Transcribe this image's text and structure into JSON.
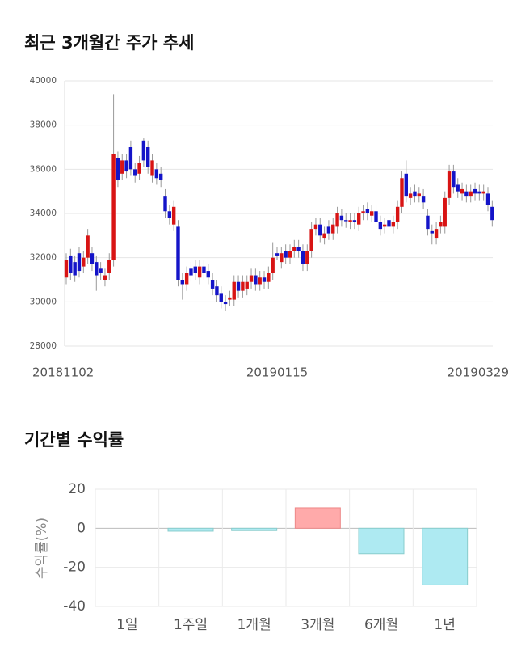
{
  "chart_data": [
    {
      "type": "candlestick",
      "title": "최근 3개월간 주가 추세",
      "categories": [
        "20181102",
        null,
        null,
        null,
        null,
        null,
        null,
        null,
        null,
        null,
        null,
        null,
        null,
        null,
        null,
        null,
        null,
        null,
        null,
        null,
        null,
        null,
        null,
        null,
        null,
        null,
        null,
        null,
        null,
        null,
        null,
        null,
        null,
        null,
        null,
        null,
        null,
        null,
        null,
        null,
        null,
        null,
        null,
        null,
        null,
        null,
        null,
        null,
        null,
        "20190115",
        null,
        null,
        null,
        null,
        null,
        null,
        null,
        null,
        null,
        null,
        null,
        null,
        null,
        null,
        null,
        null,
        null,
        null,
        null,
        null,
        null,
        null,
        null,
        null,
        null,
        null,
        null,
        null,
        null,
        null,
        null,
        null,
        null,
        null,
        null,
        null,
        null,
        null,
        null,
        null,
        null,
        null,
        null,
        null,
        null,
        null,
        null,
        null,
        null,
        "20190329"
      ],
      "open": [
        31100,
        32100,
        31800,
        32200,
        31600,
        32000,
        32200,
        31800,
        31500,
        31000,
        31300,
        31900,
        36500,
        35800,
        36400,
        37000,
        36000,
        35800,
        37300,
        37000,
        35700,
        36000,
        35800,
        34800,
        34100,
        33500,
        33400,
        31000,
        30800,
        31500,
        31600,
        31100,
        31600,
        31400,
        31000,
        30700,
        30400,
        30000,
        30100,
        30100,
        30900,
        30500,
        30600,
        30900,
        31200,
        30800,
        31100,
        30900,
        31300,
        32200,
        31800,
        32300,
        32000,
        32300,
        32500,
        32300,
        31700,
        32300,
        33300,
        33500,
        32900,
        33400,
        33100,
        33400,
        33900,
        33700,
        33600,
        33700,
        33500,
        34000,
        34200,
        33900,
        34100,
        33600,
        33400,
        33700,
        33400,
        33600,
        34300,
        35800,
        34700,
        35000,
        34800,
        34800,
        33900,
        33200,
        32900,
        33400,
        33400,
        34700,
        35900,
        35300,
        34900,
        35000,
        34800,
        35100,
        35000,
        34900,
        34900,
        34300
      ],
      "close": [
        31900,
        31300,
        31200,
        31400,
        32000,
        33000,
        31700,
        31200,
        31300,
        31200,
        31900,
        36700,
        35500,
        36400,
        35900,
        36000,
        35700,
        36300,
        36400,
        36100,
        36400,
        35600,
        35500,
        34100,
        33800,
        34300,
        31000,
        30800,
        31300,
        31200,
        31300,
        31600,
        31300,
        31100,
        30600,
        30300,
        30000,
        29900,
        30200,
        30900,
        30500,
        30900,
        30900,
        31200,
        30800,
        31100,
        30900,
        31300,
        32000,
        32100,
        32200,
        32000,
        32300,
        32500,
        32300,
        31700,
        32300,
        33300,
        33500,
        33000,
        33100,
        33100,
        33500,
        34000,
        33700,
        33650,
        33700,
        33600,
        34000,
        34100,
        34000,
        34100,
        33600,
        33300,
        33500,
        33400,
        33600,
        34300,
        35600,
        34800,
        34900,
        34800,
        34900,
        34500,
        33300,
        33100,
        33300,
        33600,
        34700,
        35900,
        35200,
        35000,
        35100,
        34800,
        35000,
        34900,
        34900,
        35000,
        34400,
        33700
      ],
      "high": [
        32200,
        32400,
        32100,
        32500,
        32300,
        33300,
        32500,
        32100,
        31800,
        31500,
        32200,
        39400,
        36800,
        36700,
        36700,
        37300,
        36300,
        36600,
        37400,
        37300,
        36700,
        36300,
        36100,
        35100,
        34400,
        34600,
        33700,
        31300,
        31600,
        31800,
        31900,
        31900,
        31900,
        31700,
        31300,
        31000,
        30700,
        30300,
        30500,
        31200,
        31200,
        31200,
        31200,
        31500,
        31500,
        31400,
        31400,
        31600,
        32700,
        32500,
        32500,
        32600,
        32600,
        32800,
        32800,
        32600,
        32600,
        33600,
        33800,
        33800,
        33400,
        33700,
        33800,
        34300,
        34200,
        34000,
        34000,
        34000,
        34300,
        34400,
        34500,
        34400,
        34400,
        33900,
        33800,
        34000,
        33900,
        34600,
        35900,
        36400,
        35200,
        35300,
        35200,
        35100,
        34200,
        33500,
        33600,
        33900,
        35000,
        36200,
        36200,
        35600,
        35400,
        35300,
        35300,
        35400,
        35300,
        35300,
        35200,
        34600
      ],
      "low": [
        30800,
        31000,
        30900,
        31100,
        31300,
        31700,
        31400,
        30500,
        31000,
        30700,
        31000,
        31600,
        35200,
        35500,
        35600,
        35700,
        35400,
        35500,
        36100,
        35800,
        35400,
        35300,
        35200,
        33800,
        33500,
        33200,
        30700,
        30100,
        30500,
        30900,
        31000,
        30800,
        31000,
        30800,
        30300,
        30000,
        29700,
        29600,
        29800,
        29800,
        30200,
        30200,
        30300,
        30600,
        30500,
        30500,
        30600,
        30600,
        31000,
        31900,
        31500,
        31700,
        31700,
        32000,
        32000,
        31400,
        31400,
        32000,
        33000,
        32700,
        32600,
        32800,
        32800,
        33100,
        33400,
        33350,
        33300,
        33300,
        33200,
        33700,
        33700,
        33600,
        33300,
        33000,
        33100,
        33100,
        33100,
        33300,
        34000,
        34500,
        34400,
        34500,
        34500,
        34200,
        33000,
        32600,
        32600,
        33100,
        33100,
        34400,
        34900,
        34700,
        34600,
        34500,
        34500,
        34600,
        34600,
        34600,
        34100,
        33400
      ],
      "up_color": "#d81414",
      "down_color": "#1414c8",
      "ylim": [
        28000,
        40000
      ],
      "yticks": [
        28000,
        30000,
        32000,
        34000,
        36000,
        38000,
        40000
      ],
      "grid": true
    },
    {
      "type": "bar",
      "title": "기간별 수익률",
      "ylabel": "수익률(%)",
      "categories": [
        "1일",
        "1주일",
        "1개월",
        "3개월",
        "6개월",
        "1년"
      ],
      "values": [
        0,
        -1.5,
        -1.2,
        10.5,
        -13,
        -29
      ],
      "positive_color": "#ffaaaa",
      "negative_color": "#aeeaf2",
      "ylim": [
        -40,
        20
      ],
      "yticks": [
        -40,
        -20,
        0,
        20
      ],
      "grid": true
    }
  ]
}
